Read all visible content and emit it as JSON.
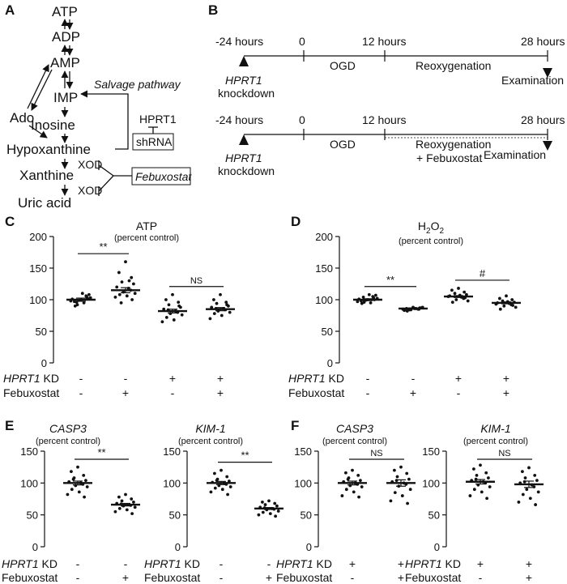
{
  "panels": {
    "A": "A",
    "B": "B",
    "C": "C",
    "D": "D",
    "E": "E",
    "F": "F"
  },
  "pathway": {
    "atp": "ATP",
    "adp": "ADP",
    "amp": "AMP",
    "ado": "Ado",
    "imp": "IMP",
    "salvage": "Salvage pathway",
    "hprt1": "HPRT1",
    "shrna": "shRNA",
    "inosine": "Inosine",
    "hypoxanthine": "Hypoxanthine",
    "xod1": "XOD",
    "xanthine": "Xanthine",
    "febuxostat": "Febuxostat",
    "xod2": "XOD",
    "uric_acid": "Uric acid"
  },
  "timeline": {
    "t1": "-24 hours",
    "t2": "0",
    "t3": "12 hours",
    "t4": "28 hours",
    "ogd": "OGD",
    "reox": "Reoxygenation",
    "exam": "Examination",
    "knock_gene": "HPRT1",
    "knock_word": "knockdown",
    "reox2a": "Reoxygenation",
    "reox2b": "+ Febuxostat"
  },
  "row_labels": {
    "kd_gene": "HPRT1",
    "kd_suffix": " KD",
    "febuxostat": "Febuxostat"
  },
  "chart_data": [
    {
      "panel": "C",
      "type": "scatter",
      "title": "ATP",
      "subtitle": "(percent control)",
      "ylim": [
        0,
        200
      ],
      "yticks": [
        0,
        50,
        100,
        150,
        200
      ],
      "kd": [
        "-",
        "-",
        "+",
        "+"
      ],
      "febuxostat": [
        "-",
        "+",
        "-",
        "+"
      ],
      "groups": [
        {
          "mean": 100,
          "sem": 2.5,
          "points": [
            100,
            97,
            104,
            92,
            108,
            101,
            95,
            106,
            99,
            103,
            90,
            110,
            98,
            102,
            96
          ]
        },
        {
          "mean": 115,
          "sem": 4,
          "points": [
            160,
            143,
            135,
            128,
            125,
            120,
            118,
            115,
            112,
            110,
            108,
            106,
            104,
            100,
            95,
            130
          ]
        },
        {
          "mean": 82,
          "sem": 3,
          "points": [
            108,
            100,
            96,
            92,
            88,
            85,
            82,
            80,
            78,
            76,
            72,
            68,
            65,
            90,
            84
          ]
        },
        {
          "mean": 85,
          "sem": 2.5,
          "points": [
            108,
            100,
            96,
            94,
            90,
            88,
            86,
            84,
            82,
            80,
            78,
            75,
            70,
            92,
            86
          ]
        }
      ],
      "brackets": [
        {
          "from": 0,
          "to": 1,
          "label": "**"
        },
        {
          "from": 2,
          "to": 3,
          "label": "NS"
        }
      ]
    },
    {
      "panel": "D",
      "type": "scatter",
      "title": "H2O2",
      "title_main": "H",
      "title_sub1": "2",
      "title_mid": "O",
      "title_sub2": "2",
      "subtitle": "(percent control)",
      "ylim": [
        0,
        200
      ],
      "yticks": [
        0,
        50,
        100,
        150,
        200
      ],
      "kd": [
        "-",
        "-",
        "+",
        "+"
      ],
      "febuxostat": [
        "-",
        "+",
        "-",
        "+"
      ],
      "groups": [
        {
          "mean": 100,
          "sem": 1.5,
          "points": [
            100,
            98,
            103,
            96,
            107,
            101,
            95,
            105,
            99,
            102,
            94,
            108,
            97,
            100,
            104
          ]
        },
        {
          "mean": 86,
          "sem": 1,
          "points": [
            88,
            86,
            85,
            84,
            87,
            83,
            86,
            85,
            84,
            88,
            82,
            86,
            85,
            87
          ]
        },
        {
          "mean": 105,
          "sem": 1.5,
          "points": [
            118,
            115,
            112,
            110,
            108,
            106,
            104,
            102,
            100,
            98,
            96,
            107,
            105,
            103
          ]
        },
        {
          "mean": 95,
          "sem": 1.5,
          "points": [
            106,
            102,
            100,
            98,
            96,
            95,
            94,
            92,
            90,
            88,
            85,
            97,
            93,
            91
          ]
        }
      ],
      "brackets": [
        {
          "from": 0,
          "to": 1,
          "label": "**"
        },
        {
          "from": 2,
          "to": 3,
          "label": "#"
        }
      ]
    },
    {
      "panel": "E1",
      "type": "scatter",
      "gene": "CASP3",
      "subtitle": "(percent control)",
      "ylim": [
        0,
        150
      ],
      "yticks": [
        0,
        50,
        100,
        150
      ],
      "kd": [
        "-",
        "-"
      ],
      "febuxostat": [
        "-",
        "+"
      ],
      "groups": [
        {
          "mean": 100,
          "sem": 3,
          "points": [
            125,
            118,
            112,
            108,
            104,
            102,
            100,
            98,
            96,
            94,
            90,
            86,
            82,
            78,
            106
          ]
        },
        {
          "mean": 66,
          "sem": 2,
          "points": [
            82,
            78,
            75,
            72,
            70,
            68,
            66,
            65,
            64,
            62,
            60,
            58,
            55,
            52,
            67
          ]
        }
      ],
      "brackets": [
        {
          "from": 0,
          "to": 1,
          "label": "**"
        }
      ]
    },
    {
      "panel": "E2",
      "type": "scatter",
      "gene": "KIM-1",
      "subtitle": "(percent control)",
      "ylim": [
        0,
        150
      ],
      "yticks": [
        0,
        50,
        100,
        150
      ],
      "kd": [
        "-",
        "-"
      ],
      "febuxostat": [
        "-",
        "+"
      ],
      "groups": [
        {
          "mean": 100,
          "sem": 2.5,
          "points": [
            120,
            115,
            110,
            106,
            103,
            101,
            100,
            98,
            96,
            94,
            92,
            90,
            86,
            82,
            104
          ]
        },
        {
          "mean": 60,
          "sem": 1.5,
          "points": [
            72,
            70,
            68,
            66,
            64,
            62,
            60,
            59,
            58,
            56,
            54,
            52,
            50,
            48,
            61
          ]
        }
      ],
      "brackets": [
        {
          "from": 0,
          "to": 1,
          "label": "**"
        }
      ]
    },
    {
      "panel": "F1",
      "type": "scatter",
      "gene": "CASP3",
      "subtitle": "(percent control)",
      "ylim": [
        0,
        150
      ],
      "yticks": [
        0,
        50,
        100,
        150
      ],
      "kd": [
        "+",
        "+"
      ],
      "febuxostat": [
        "-",
        "+"
      ],
      "groups": [
        {
          "mean": 100,
          "sem": 3,
          "points": [
            120,
            116,
            112,
            108,
            104,
            102,
            100,
            98,
            96,
            94,
            90,
            86,
            80,
            78,
            106
          ]
        },
        {
          "mean": 100,
          "sem": 5,
          "points": [
            125,
            120,
            115,
            110,
            106,
            102,
            100,
            98,
            95,
            90,
            85,
            80,
            72,
            68,
            104
          ]
        }
      ],
      "brackets": [
        {
          "from": 0,
          "to": 1,
          "label": "NS"
        }
      ]
    },
    {
      "panel": "F2",
      "type": "scatter",
      "gene": "KIM-1",
      "subtitle": "(percent control)",
      "ylim": [
        0,
        150
      ],
      "yticks": [
        0,
        50,
        100,
        150
      ],
      "kd": [
        "+",
        "+"
      ],
      "febuxostat": [
        "-",
        "+"
      ],
      "groups": [
        {
          "mean": 102,
          "sem": 3.5,
          "points": [
            128,
            122,
            116,
            112,
            108,
            104,
            102,
            100,
            97,
            94,
            90,
            86,
            80,
            76,
            106
          ]
        },
        {
          "mean": 98,
          "sem": 5,
          "points": [
            124,
            118,
            112,
            108,
            104,
            100,
            97,
            94,
            90,
            86,
            82,
            76,
            70,
            66,
            102
          ]
        }
      ],
      "brackets": [
        {
          "from": 0,
          "to": 1,
          "label": "NS"
        }
      ]
    }
  ]
}
